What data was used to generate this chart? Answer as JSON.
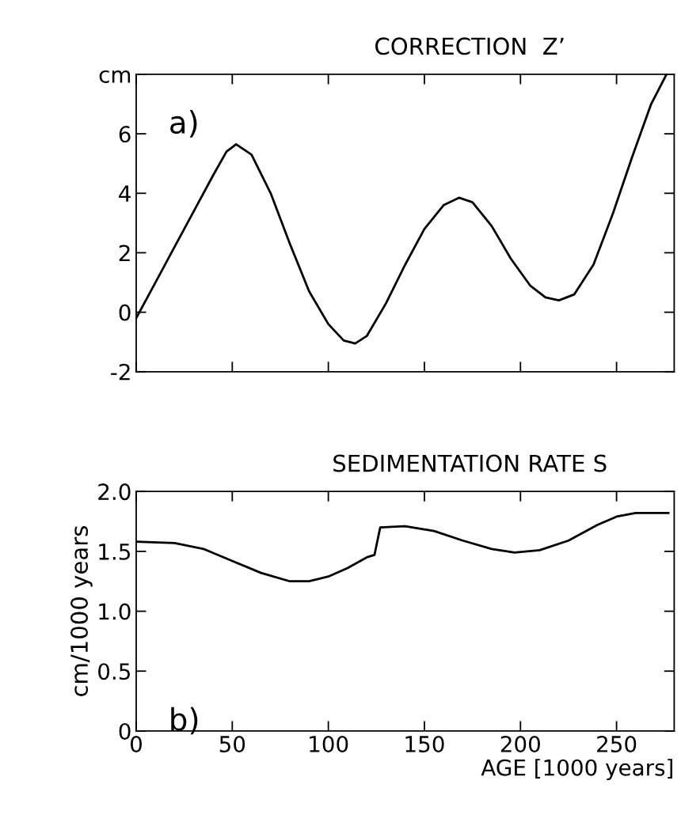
{
  "chart_data": [
    {
      "type": "line",
      "title": "CORRECTION  Z’",
      "annotations": [
        "a)"
      ],
      "tick_labels": "y",
      "grid": false,
      "legend": false,
      "x": [
        0,
        10,
        20,
        30,
        40,
        47,
        52,
        60,
        70,
        80,
        90,
        100,
        108,
        114,
        120,
        130,
        140,
        150,
        160,
        168,
        175,
        185,
        195,
        205,
        213,
        220,
        228,
        238,
        248,
        258,
        268,
        276
      ],
      "series": [
        {
          "color": "#000000",
          "values": [
            -0.2,
            1.0,
            2.2,
            3.4,
            4.6,
            5.4,
            5.65,
            5.3,
            4.0,
            2.3,
            0.7,
            -0.4,
            -0.95,
            -1.05,
            -0.8,
            0.3,
            1.6,
            2.8,
            3.6,
            3.85,
            3.7,
            2.9,
            1.8,
            0.9,
            0.5,
            0.4,
            0.6,
            1.6,
            3.3,
            5.2,
            7.0,
            8.0
          ]
        }
      ],
      "xlim": [
        0,
        280
      ],
      "xticks": [
        0,
        50,
        100,
        150,
        200,
        250
      ],
      "ylim": [
        -2,
        8
      ],
      "yticks": [
        -2,
        0,
        2,
        4,
        6,
        {
          "value": 8,
          "label": "cm"
        }
      ]
    },
    {
      "type": "line",
      "title": "SEDIMENTATION RATE S",
      "annotations": [
        "b)"
      ],
      "ylabel": "cm/1000 years",
      "xlabel": "AGE [1000 years]",
      "grid": false,
      "legend": false,
      "x": [
        0,
        20,
        35,
        50,
        65,
        80,
        90,
        100,
        110,
        120,
        124,
        127,
        140,
        155,
        170,
        185,
        197,
        210,
        225,
        240,
        250,
        260,
        277
      ],
      "series": [
        {
          "color": "#000000",
          "values": [
            1.58,
            1.57,
            1.52,
            1.42,
            1.32,
            1.25,
            1.25,
            1.29,
            1.36,
            1.45,
            1.47,
            1.7,
            1.71,
            1.67,
            1.59,
            1.52,
            1.49,
            1.51,
            1.59,
            1.72,
            1.79,
            1.82,
            1.82
          ]
        }
      ],
      "xlim": [
        0,
        280
      ],
      "xticks": [
        0,
        50,
        100,
        150,
        200,
        250
      ],
      "ylim": [
        0,
        2.0
      ],
      "yticks": [
        {
          "value": 0,
          "label": "0"
        },
        0.5,
        {
          "value": 1,
          "label": "1.0"
        },
        1.5,
        {
          "value": 2,
          "label": "2.0"
        }
      ]
    }
  ]
}
